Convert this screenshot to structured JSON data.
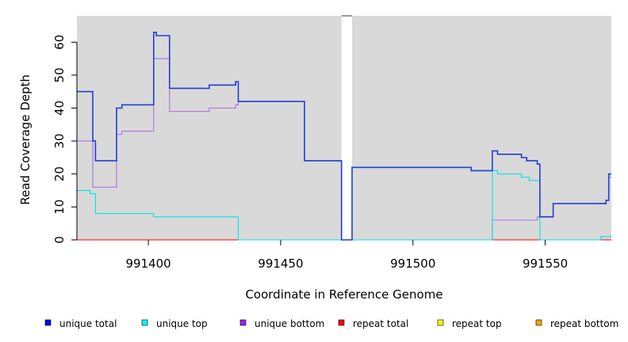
{
  "chart_data": {
    "type": "line",
    "step": true,
    "xlabel": "Coordinate in Reference Genome",
    "ylabel": "Read Coverage Depth",
    "xlim": [
      991373,
      991575
    ],
    "ylim": [
      0,
      68
    ],
    "x_ticks": [
      991400,
      991450,
      991500,
      991550
    ],
    "y_ticks": [
      0,
      10,
      20,
      30,
      40,
      50,
      60
    ],
    "gap": [
      991473,
      991477
    ],
    "panel_color": "#d9d9d9",
    "series": [
      {
        "name": "unique total",
        "color": "#1f3fd6",
        "points": [
          [
            991373,
            45
          ],
          [
            991379,
            30
          ],
          [
            991380,
            24
          ],
          [
            991388,
            40
          ],
          [
            991390,
            41
          ],
          [
            991402,
            63
          ],
          [
            991403,
            62
          ],
          [
            991408,
            46
          ],
          [
            991423,
            47
          ],
          [
            991433,
            48
          ],
          [
            991434,
            42
          ],
          [
            991459,
            24
          ],
          [
            991473,
            0
          ],
          [
            991477,
            22
          ],
          [
            991522,
            21
          ],
          [
            991530,
            27
          ],
          [
            991532,
            26
          ],
          [
            991541,
            25
          ],
          [
            991543,
            24
          ],
          [
            991547,
            23
          ],
          [
            991548,
            7
          ],
          [
            991553,
            11
          ],
          [
            991573,
            12
          ],
          [
            991574,
            20
          ],
          [
            991575,
            20
          ]
        ]
      },
      {
        "name": "unique top",
        "color": "#00e5e5",
        "points": [
          [
            991373,
            15
          ],
          [
            991378,
            14
          ],
          [
            991380,
            8
          ],
          [
            991402,
            7
          ],
          [
            991434,
            0
          ],
          [
            991473,
            0
          ],
          [
            991477,
            0
          ],
          [
            991530,
            21
          ],
          [
            991532,
            20
          ],
          [
            991541,
            19
          ],
          [
            991544,
            18
          ],
          [
            991548,
            0
          ],
          [
            991571,
            1
          ],
          [
            991575,
            1
          ]
        ]
      },
      {
        "name": "unique bottom",
        "color": "#b070e0",
        "points": [
          [
            991373,
            30
          ],
          [
            991379,
            16
          ],
          [
            991388,
            32
          ],
          [
            991390,
            33
          ],
          [
            991402,
            55
          ],
          [
            991408,
            39
          ],
          [
            991423,
            40
          ],
          [
            991433,
            41
          ],
          [
            991434,
            42
          ],
          [
            991459,
            24
          ],
          [
            991473,
            0
          ],
          [
            991477,
            0
          ],
          [
            991530,
            6
          ],
          [
            991547,
            7
          ],
          [
            991553,
            11
          ],
          [
            991573,
            12
          ],
          [
            991574,
            19
          ],
          [
            991575,
            19
          ]
        ]
      },
      {
        "name": "repeat total",
        "color": "#ff0000",
        "points": [
          [
            991373,
            0
          ],
          [
            991473,
            0
          ],
          [
            991477,
            0
          ],
          [
            991575,
            0
          ]
        ]
      },
      {
        "name": "repeat top",
        "color": "#ffff00",
        "points": [
          [
            991373,
            0
          ],
          [
            991473,
            0
          ],
          [
            991477,
            0
          ],
          [
            991575,
            0
          ]
        ]
      },
      {
        "name": "repeat bottom",
        "color": "#ffa500",
        "points": [
          [
            991373,
            0
          ],
          [
            991473,
            0
          ],
          [
            991477,
            0
          ],
          [
            991575,
            0
          ]
        ]
      }
    ],
    "legend": {
      "placement": "bottom",
      "items": [
        {
          "label": "unique total",
          "color": "#0000ff"
        },
        {
          "label": "unique top",
          "color": "#00ffff"
        },
        {
          "label": "unique bottom",
          "color": "#a020f0"
        },
        {
          "label": "repeat total",
          "color": "#ff0000"
        },
        {
          "label": "repeat top",
          "color": "#ffff00"
        },
        {
          "label": "repeat bottom",
          "color": "#ffa500"
        }
      ]
    }
  }
}
